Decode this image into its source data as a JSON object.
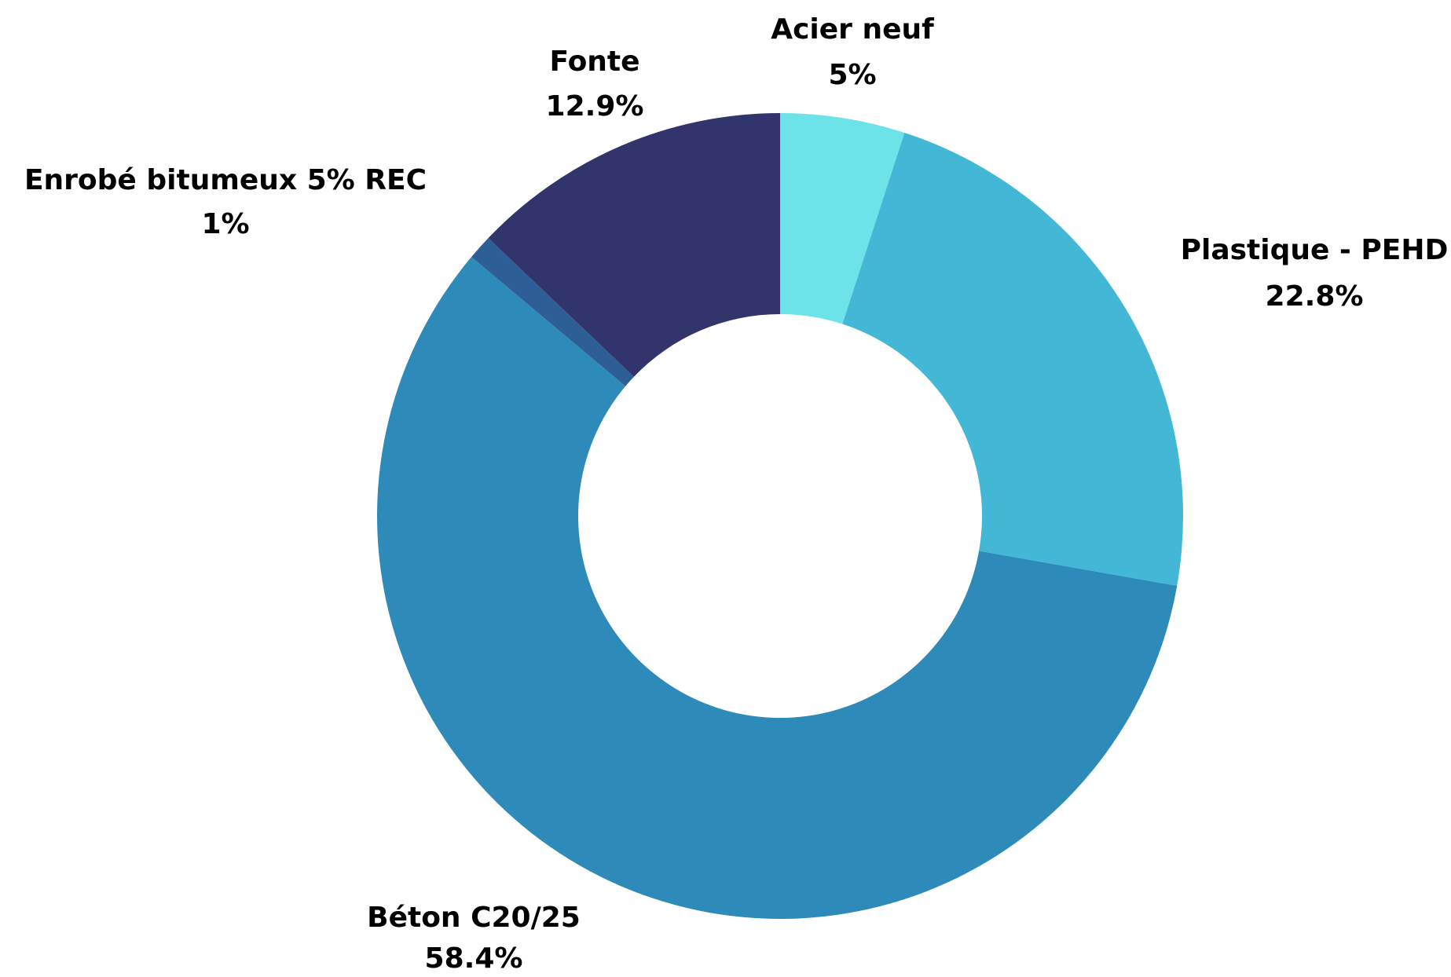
{
  "chart_data": {
    "type": "donut",
    "categories": [
      "Acier neuf",
      "Plastique - PEHD",
      "Béton C20/25",
      "Enrobé bitumeux 5% REC",
      "Fonte"
    ],
    "values": [
      5,
      22.8,
      58.4,
      1,
      12.9
    ],
    "value_labels": [
      "5%",
      "22.8%",
      "58.4%",
      "1%",
      "12.9%"
    ],
    "colors": [
      "#6ce3e8",
      "#43b7d6",
      "#2e8bb9",
      "#2d5f96",
      "#31356b"
    ]
  }
}
